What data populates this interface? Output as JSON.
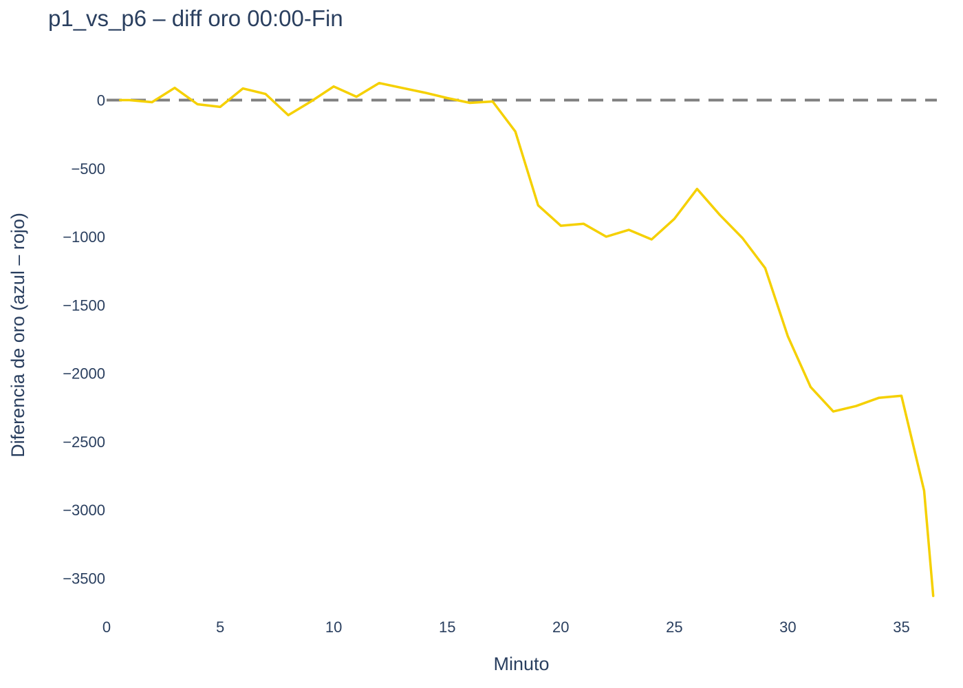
{
  "chart_data": {
    "type": "line",
    "title": "p1_vs_p6 – diff oro 00:00-Fin",
    "xlabel": "Minuto",
    "ylabel": "Diferencia de oro (azul – rojo)",
    "xlim": [
      0,
      36.5
    ],
    "ylim": [
      -3700,
      320
    ],
    "x_ticks": [
      0,
      5,
      10,
      15,
      20,
      25,
      30,
      35
    ],
    "y_ticks": [
      0,
      -500,
      -1000,
      -1500,
      -2000,
      -2500,
      -3000,
      -3500
    ],
    "x_tick_labels": [
      "0",
      "5",
      "10",
      "15",
      "20",
      "25",
      "30",
      "35"
    ],
    "y_tick_labels": [
      "0",
      "−500",
      "−1000",
      "−1500",
      "−2000",
      "−2500",
      "−3000",
      "−3500"
    ],
    "grid": false,
    "reference_line": {
      "y": 0,
      "style": "dashed",
      "color": "#808080"
    },
    "series": [
      {
        "color": "#f5d000",
        "x": [
          0.6,
          1,
          2,
          3,
          4,
          5,
          6,
          7,
          8,
          9,
          10,
          11,
          12,
          13,
          14,
          15,
          16,
          17,
          18,
          19,
          20,
          21,
          22,
          23,
          24,
          25,
          26,
          27,
          28,
          29,
          30,
          31,
          32,
          33,
          34,
          35,
          36,
          36.4
        ],
        "y": [
          0,
          0,
          -15,
          90,
          -30,
          -50,
          85,
          45,
          -110,
          -10,
          100,
          25,
          125,
          90,
          55,
          15,
          -20,
          -10,
          -230,
          -770,
          -920,
          -905,
          -1000,
          -950,
          -1020,
          -870,
          -650,
          -840,
          -1010,
          -1230,
          -1730,
          -2100,
          -2280,
          -2240,
          -2180,
          -2165,
          -2860,
          -3630
        ]
      }
    ]
  }
}
